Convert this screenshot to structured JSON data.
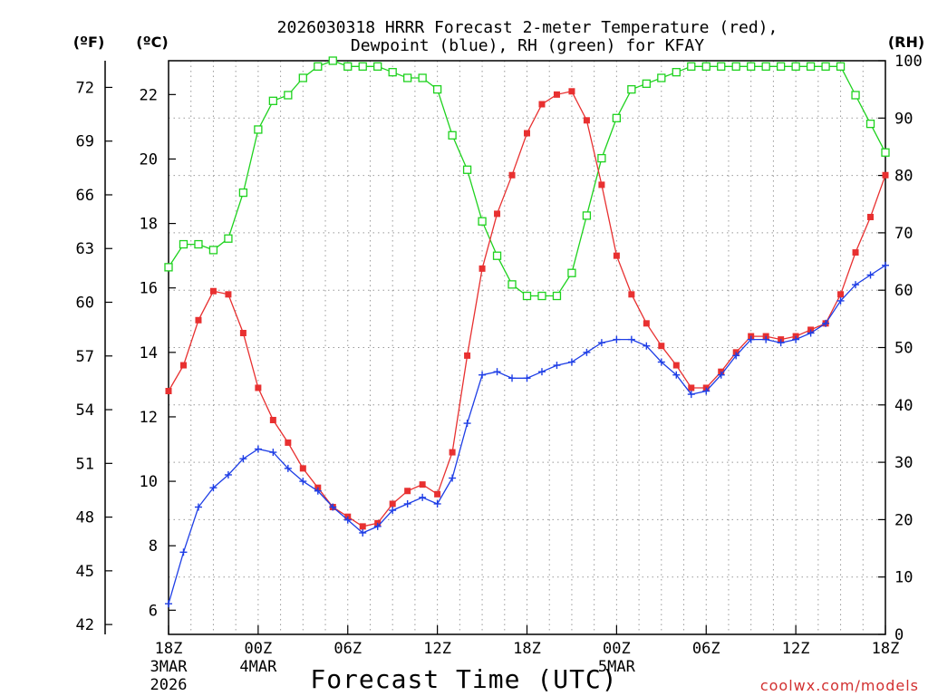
{
  "chart_data": {
    "type": "line",
    "title_line1": "2026030318 HRRR Forecast 2-meter Temperature (red),",
    "title_line2": "Dewpoint (blue), RH (green) for KFAY",
    "xlabel": "Forecast Time (UTC)",
    "credit": "coolwx.com/models",
    "unit_labels": {
      "fahrenheit": "(ºF)",
      "celsius": "(ºC)",
      "rh": "(RH)"
    },
    "xlim": [
      0,
      48
    ],
    "ylim_celsius": [
      5.25,
      23.05
    ],
    "ylim_rh": [
      0,
      100
    ],
    "x_ticks": [
      {
        "value": 0,
        "label": "18Z",
        "date1": "3MAR",
        "date2": "2026"
      },
      {
        "value": 6,
        "label": "00Z",
        "date1": "4MAR",
        "date2": ""
      },
      {
        "value": 12,
        "label": "06Z",
        "date1": "",
        "date2": ""
      },
      {
        "value": 18,
        "label": "12Z",
        "date1": "",
        "date2": ""
      },
      {
        "value": 24,
        "label": "18Z",
        "date1": "",
        "date2": ""
      },
      {
        "value": 30,
        "label": "00Z",
        "date1": "5MAR",
        "date2": ""
      },
      {
        "value": 36,
        "label": "06Z",
        "date1": "",
        "date2": ""
      },
      {
        "value": 42,
        "label": "12Z",
        "date1": "",
        "date2": ""
      },
      {
        "value": 48,
        "label": "18Z",
        "date1": "",
        "date2": ""
      }
    ],
    "celsius_ticks": [
      "6",
      "8",
      "10",
      "12",
      "14",
      "16",
      "18",
      "20",
      "22"
    ],
    "fahrenheit_ticks": [
      "42",
      "45",
      "48",
      "51",
      "54",
      "57",
      "60",
      "63",
      "66",
      "69",
      "72"
    ],
    "rh_ticks": [
      "0",
      "10",
      "20",
      "30",
      "40",
      "50",
      "60",
      "70",
      "80",
      "90",
      "100"
    ],
    "colors": {
      "temperature": "#e83030",
      "dewpoint": "#1e3ee6",
      "rh": "#1ed21e",
      "axis": "#000000"
    },
    "series": [
      {
        "name": "Temperature",
        "units": "C",
        "values": [
          12.8,
          13.6,
          15.0,
          15.9,
          15.8,
          14.6,
          12.9,
          11.9,
          11.2,
          10.4,
          9.8,
          9.2,
          8.9,
          8.6,
          8.7,
          9.3,
          9.7,
          9.9,
          9.6,
          10.9,
          13.9,
          16.6,
          18.3,
          19.5,
          20.8,
          21.7,
          22.0,
          22.1,
          21.2,
          19.2,
          17.0,
          15.8,
          14.9,
          14.2,
          13.6,
          12.9,
          12.9,
          13.4,
          14.0,
          14.5,
          14.5,
          14.4,
          14.5,
          14.7,
          14.9,
          15.8,
          17.1,
          18.2,
          19.5
        ]
      },
      {
        "name": "Dewpoint",
        "units": "C",
        "values": [
          6.2,
          7.8,
          9.2,
          9.8,
          10.2,
          10.7,
          11.0,
          10.9,
          10.4,
          10.0,
          9.7,
          9.2,
          8.8,
          8.4,
          8.6,
          9.1,
          9.3,
          9.5,
          9.3,
          10.1,
          11.8,
          13.3,
          13.4,
          13.2,
          13.2,
          13.4,
          13.6,
          13.7,
          14.0,
          14.3,
          14.4,
          14.4,
          14.2,
          13.7,
          13.3,
          12.7,
          12.8,
          13.3,
          13.9,
          14.4,
          14.4,
          14.3,
          14.4,
          14.6,
          14.9,
          15.6,
          16.1,
          16.4,
          16.7
        ]
      },
      {
        "name": "RH",
        "units": "%",
        "values": [
          64,
          68,
          68,
          67,
          69,
          77,
          88,
          93,
          94,
          97,
          99,
          100,
          99,
          99,
          99,
          98,
          97,
          97,
          95,
          87,
          81,
          72,
          66,
          61,
          59,
          59,
          59,
          63,
          73,
          83,
          90,
          95,
          96,
          97,
          98,
          99,
          99,
          99,
          99,
          99,
          99,
          99,
          99,
          99,
          99,
          99,
          94,
          89,
          84
        ]
      }
    ]
  }
}
